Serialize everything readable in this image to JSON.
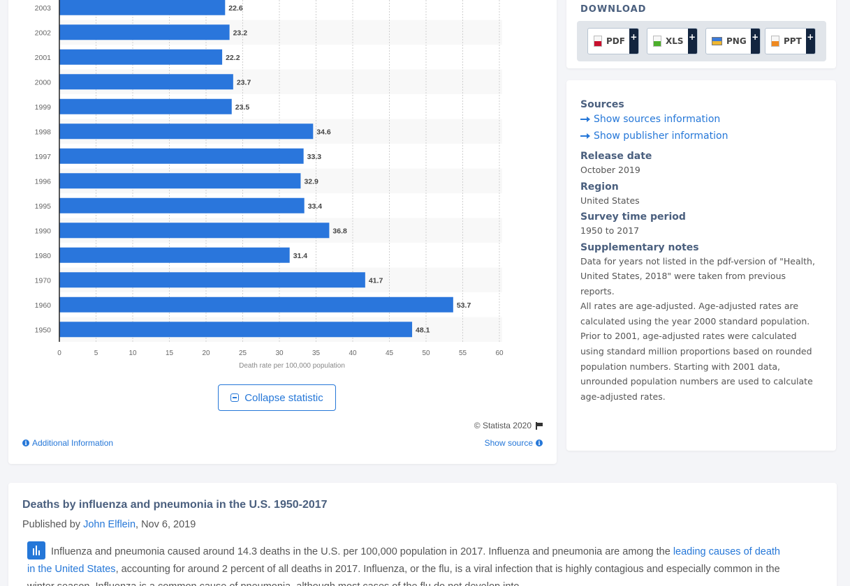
{
  "chart_data": {
    "type": "bar",
    "orientation": "horizontal",
    "categories": [
      "2003",
      "2002",
      "2001",
      "2000",
      "1999",
      "1998",
      "1997",
      "1996",
      "1995",
      "1990",
      "1980",
      "1970",
      "1960",
      "1950"
    ],
    "values": [
      22.6,
      23.2,
      22.2,
      23.7,
      23.5,
      34.6,
      33.3,
      32.9,
      33.4,
      36.8,
      31.4,
      41.7,
      53.7,
      48.1
    ],
    "data_labels": [
      "",
      "23.2",
      "22.2",
      "23.7",
      "23.5",
      "34.6",
      "33.3",
      "32.9",
      "33.4",
      "36.8",
      "31.4",
      "41.7",
      "53.7",
      "48.1"
    ],
    "title": "",
    "xlabel": "Death rate per 100,000 population",
    "ylabel": "",
    "xlim": [
      0,
      60
    ],
    "xticks": [
      "0",
      "5",
      "10",
      "15",
      "20",
      "25",
      "30",
      "35",
      "40",
      "45",
      "50",
      "55",
      "60"
    ],
    "grid": true,
    "bar_color": "#2a76dc",
    "note": "Top row partially cut off at viewport edge"
  },
  "chart_card": {
    "collapse_label": "Collapse statistic",
    "copyright": "© Statista 2020",
    "additional_info": "Additional Information",
    "show_source": "Show source"
  },
  "download": {
    "title": "DOWNLOAD",
    "buttons": [
      {
        "label": "PDF",
        "icon": "pdf-file-icon"
      },
      {
        "label": "XLS",
        "icon": "xls-file-icon"
      },
      {
        "label": "PNG",
        "icon": "png-image-icon"
      },
      {
        "label": "PPT",
        "icon": "ppt-file-icon"
      }
    ],
    "plus": "+"
  },
  "info": {
    "sources_heading": "Sources",
    "show_sources": "Show sources information",
    "show_publisher": "Show publisher information",
    "release_heading": "Release date",
    "release_value": "October 2019",
    "region_heading": "Region",
    "region_value": "United States",
    "survey_heading": "Survey time period",
    "survey_value": "1950 to 2017",
    "notes_heading": "Supplementary notes",
    "notes_p1": "Data for years not listed in the pdf-version of \"Health, United States, 2018\" were taken from previous reports.",
    "notes_p2": "All rates are age-adjusted. Age-adjusted rates are calculated using the year 2000 standard population. Prior to 2001, age-adjusted rates were calculated using standard million proportions based on rounded population numbers. Starting with 2001 data, unrounded population numbers are used to calculate age-adjusted rates."
  },
  "description": {
    "title": "Deaths by influenza and pneumonia in the U.S. 1950-2017",
    "published_prefix": "Published by ",
    "author": "John Elflein",
    "date_suffix": ", Nov 6, 2019",
    "body_1": "Influenza and pneumonia caused around 14.3 deaths in the U.S. per 100,000 population in 2017. Influenza and pneumonia are among the ",
    "body_link": "leading causes of death in the United States",
    "body_2": ", accounting for around 2 percent of all deaths in 2017. Influenza, or the flu, is a viral infection that is highly contagious and especially common in the winter season. Influenza is a common cause of pneumonia, although most cases of the flu do not develop into"
  }
}
